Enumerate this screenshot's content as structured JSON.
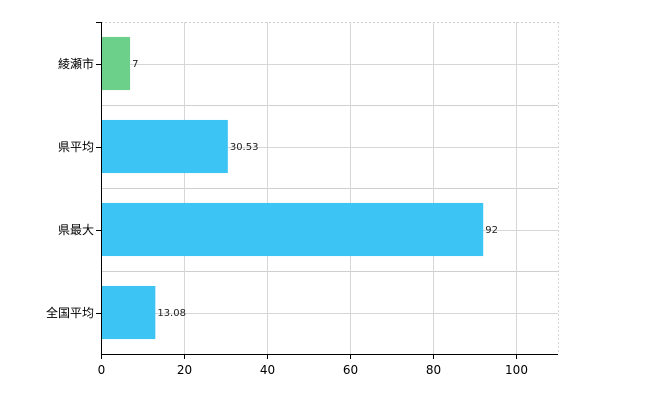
{
  "chart_data": {
    "type": "bar",
    "orientation": "horizontal",
    "categories": [
      "綾瀬市",
      "県平均",
      "県最大",
      "全国平均"
    ],
    "values": [
      7,
      30.53,
      92,
      13.08
    ],
    "value_labels": [
      "7",
      "30.53",
      "92",
      "13.08"
    ],
    "bar_colors": [
      "#6dd08a",
      "#3cc4f5",
      "#3cc4f5",
      "#3cc4f5"
    ],
    "title": "",
    "xlabel": "",
    "ylabel": "",
    "xlim": [
      0,
      110
    ],
    "xticks": [
      0,
      20,
      40,
      60,
      80,
      100
    ],
    "xtick_labels": [
      "0",
      "20",
      "40",
      "60",
      "80",
      "100"
    ],
    "grid": true,
    "legend": "none"
  }
}
